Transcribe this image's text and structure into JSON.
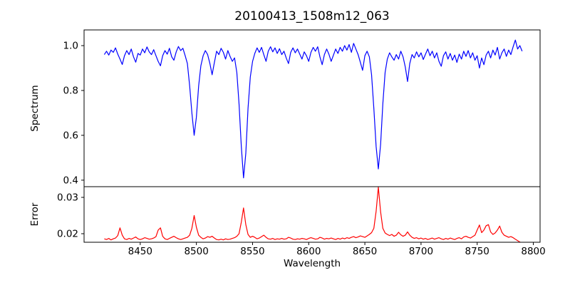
{
  "figure": {
    "title": "20100413_1508m12_063",
    "xlabel": "Wavelength",
    "background_color": "#ffffff",
    "axes_color": "#000000",
    "top_plot": {
      "ylabel": "Spectrum"
    },
    "bottom_plot": {
      "ylabel": "Error"
    }
  },
  "chart_data": [
    {
      "type": "line",
      "title": "20100413_1508m12_063",
      "xlabel": "",
      "ylabel": "Spectrum",
      "grid": false,
      "legend": "none",
      "xlim": [
        8400,
        8806
      ],
      "ylim": [
        0.371,
        1.07
      ],
      "yticks": [
        1.0,
        0.8,
        0.6,
        0.4
      ],
      "ytick_labels": [
        "1.0",
        "0.8",
        "0.6",
        "0.4"
      ],
      "xticks": null,
      "xtick_labels": null,
      "series": [
        {
          "name": "spectrum",
          "color": "#0000ff",
          "x_start": 8418,
          "x_step": 2,
          "values": [
            0.96,
            0.975,
            0.958,
            0.98,
            0.97,
            0.99,
            0.962,
            0.94,
            0.916,
            0.955,
            0.978,
            0.96,
            0.985,
            0.95,
            0.926,
            0.965,
            0.958,
            0.985,
            0.968,
            0.994,
            0.972,
            0.96,
            0.982,
            0.955,
            0.93,
            0.91,
            0.955,
            0.978,
            0.962,
            0.988,
            0.95,
            0.935,
            0.972,
            0.996,
            0.978,
            0.988,
            0.955,
            0.92,
            0.82,
            0.7,
            0.6,
            0.68,
            0.82,
            0.91,
            0.955,
            0.978,
            0.96,
            0.92,
            0.87,
            0.925,
            0.975,
            0.96,
            0.988,
            0.97,
            0.94,
            0.978,
            0.952,
            0.93,
            0.945,
            0.88,
            0.74,
            0.55,
            0.41,
            0.52,
            0.72,
            0.86,
            0.93,
            0.965,
            0.99,
            0.97,
            0.992,
            0.96,
            0.93,
            0.975,
            0.995,
            0.972,
            0.99,
            0.965,
            0.986,
            0.96,
            0.975,
            0.945,
            0.92,
            0.97,
            0.99,
            0.968,
            0.985,
            0.962,
            0.94,
            0.972,
            0.955,
            0.93,
            0.97,
            0.992,
            0.975,
            0.995,
            0.95,
            0.915,
            0.96,
            0.985,
            0.962,
            0.93,
            0.958,
            0.985,
            0.965,
            0.992,
            0.975,
            1.0,
            0.98,
            1.005,
            0.97,
            1.01,
            0.985,
            0.96,
            0.925,
            0.89,
            0.955,
            0.975,
            0.95,
            0.87,
            0.72,
            0.55,
            0.45,
            0.56,
            0.74,
            0.88,
            0.94,
            0.968,
            0.95,
            0.935,
            0.96,
            0.94,
            0.975,
            0.95,
            0.905,
            0.84,
            0.92,
            0.96,
            0.945,
            0.972,
            0.95,
            0.968,
            0.938,
            0.962,
            0.985,
            0.955,
            0.975,
            0.945,
            0.968,
            0.93,
            0.908,
            0.955,
            0.972,
            0.94,
            0.965,
            0.935,
            0.958,
            0.925,
            0.962,
            0.94,
            0.975,
            0.952,
            0.978,
            0.945,
            0.968,
            0.935,
            0.955,
            0.9,
            0.945,
            0.915,
            0.958,
            0.975,
            0.945,
            0.98,
            0.958,
            0.992,
            0.94,
            0.968,
            0.985,
            0.952,
            0.98,
            0.96,
            0.995,
            1.025,
            0.985,
            1.0,
            0.975
          ]
        }
      ],
      "annotations": [
        "deep absorption lines near 8498, 8542 and 8662"
      ]
    },
    {
      "type": "line",
      "title": "",
      "xlabel": "Wavelength",
      "ylabel": "Error",
      "grid": false,
      "legend": "none",
      "xlim": [
        8400,
        8806
      ],
      "ylim": [
        0.01765,
        0.03294
      ],
      "yticks": [
        0.03,
        0.02
      ],
      "ytick_labels": [
        "0.03",
        "0.02"
      ],
      "xticks": [
        8450,
        8500,
        8550,
        8600,
        8650,
        8700,
        8750,
        8800
      ],
      "xtick_labels": [
        "8450",
        "8500",
        "8550",
        "8600",
        "8650",
        "8700",
        "8750",
        "8800"
      ],
      "series": [
        {
          "name": "error",
          "color": "#ff0000",
          "x_start": 8418,
          "x_step": 2,
          "values": [
            0.0186,
            0.0184,
            0.0187,
            0.0183,
            0.0186,
            0.0188,
            0.0195,
            0.0216,
            0.0196,
            0.0186,
            0.0184,
            0.0187,
            0.0185,
            0.0188,
            0.0191,
            0.0186,
            0.0184,
            0.0186,
            0.0189,
            0.0187,
            0.0185,
            0.0186,
            0.0188,
            0.0192,
            0.021,
            0.0216,
            0.0193,
            0.0186,
            0.0184,
            0.0187,
            0.019,
            0.0193,
            0.0189,
            0.0186,
            0.0184,
            0.0186,
            0.0188,
            0.019,
            0.0196,
            0.0215,
            0.025,
            0.0218,
            0.0196,
            0.019,
            0.0186,
            0.0188,
            0.0192,
            0.019,
            0.0193,
            0.0188,
            0.0184,
            0.0183,
            0.0185,
            0.0183,
            0.0186,
            0.0184,
            0.0185,
            0.0187,
            0.0189,
            0.0193,
            0.02,
            0.0232,
            0.0271,
            0.0225,
            0.0198,
            0.019,
            0.0193,
            0.019,
            0.0186,
            0.0188,
            0.0192,
            0.0196,
            0.019,
            0.0186,
            0.0185,
            0.0187,
            0.0184,
            0.0186,
            0.0185,
            0.0187,
            0.0185,
            0.0186,
            0.019,
            0.0188,
            0.0185,
            0.0184,
            0.0186,
            0.0185,
            0.0187,
            0.0186,
            0.0184,
            0.0187,
            0.0189,
            0.0187,
            0.0185,
            0.0186,
            0.019,
            0.0188,
            0.0185,
            0.0187,
            0.0186,
            0.0188,
            0.0186,
            0.0184,
            0.0187,
            0.0185,
            0.0188,
            0.0186,
            0.0189,
            0.0187,
            0.019,
            0.0192,
            0.0189,
            0.0191,
            0.0194,
            0.0192,
            0.019,
            0.0194,
            0.0198,
            0.0203,
            0.0215,
            0.0262,
            0.0328,
            0.026,
            0.0215,
            0.0202,
            0.0198,
            0.0195,
            0.0198,
            0.0193,
            0.0196,
            0.0204,
            0.0197,
            0.0193,
            0.0196,
            0.0205,
            0.0196,
            0.019,
            0.0187,
            0.0189,
            0.0186,
            0.0188,
            0.0185,
            0.0187,
            0.0184,
            0.0186,
            0.0188,
            0.0185,
            0.0187,
            0.0189,
            0.0186,
            0.0184,
            0.0187,
            0.0185,
            0.0188,
            0.0186,
            0.0184,
            0.0187,
            0.0189,
            0.0186,
            0.0191,
            0.0193,
            0.019,
            0.0188,
            0.0192,
            0.0196,
            0.021,
            0.0224,
            0.0203,
            0.021,
            0.0222,
            0.0225,
            0.0205,
            0.0198,
            0.0202,
            0.021,
            0.0221,
            0.0204,
            0.0196,
            0.0193,
            0.019,
            0.0192,
            0.0189,
            0.0185,
            0.0181,
            0.0177,
            0.0174
          ]
        }
      ],
      "annotations": [
        "error spikes at 8432, 8468, 8498, 8542, 8662 and 8750-8770"
      ]
    }
  ]
}
